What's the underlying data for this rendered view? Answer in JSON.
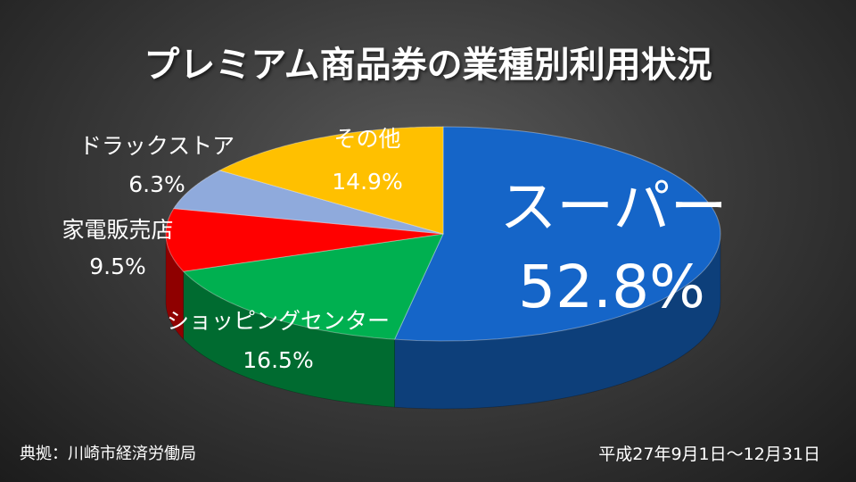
{
  "title": "プレミアム商品券の業種別利用状況",
  "source": "典拠：川崎市経済労働局",
  "period": "平成27年9月1日～12月31日",
  "chart_data": {
    "type": "pie",
    "title": "プレミアム商品券の業種別利用状況",
    "slices": [
      {
        "name": "スーパー",
        "value": 52.8,
        "label": "52.8%",
        "color": "#1565c8",
        "side": "#0d3f7a"
      },
      {
        "name": "ショッピングセンター",
        "value": 16.5,
        "label": "16.5%",
        "color": "#00b050",
        "side": "#006b30"
      },
      {
        "name": "家電販売店",
        "value": 9.5,
        "label": "9.5%",
        "color": "#ff0000",
        "side": "#8f0000"
      },
      {
        "name": "ドラックストア",
        "value": 6.3,
        "label": "6.3%",
        "color": "#8faadc",
        "side": "#5a6f94"
      },
      {
        "name": "その他",
        "value": 14.9,
        "label": "14.9%",
        "color": "#ffc000",
        "side": "#a37a00"
      }
    ]
  }
}
